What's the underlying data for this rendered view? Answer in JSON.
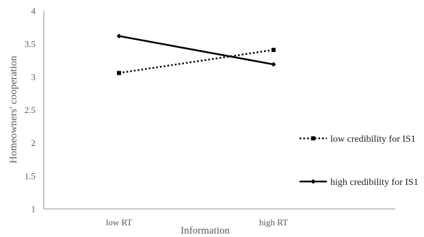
{
  "chart_data": {
    "type": "line",
    "title": "",
    "xlabel": "Information",
    "ylabel": "Homeowners' cooperation",
    "categories": [
      "low RT",
      "high RT"
    ],
    "ylim": [
      1,
      4
    ],
    "yticks": [
      1,
      1.5,
      2,
      2.5,
      3,
      3.5,
      4
    ],
    "ytick_labels": [
      "1",
      "1.5",
      "2",
      "2.5",
      "3",
      "3.5",
      "4"
    ],
    "grid": false,
    "legend_position": "right",
    "series": [
      {
        "name": "low credibility for IS1",
        "values": [
          3.06,
          3.41
        ],
        "color": "#000000",
        "line_style": "dotted",
        "marker": "square"
      },
      {
        "name": "high credibility for IS1",
        "values": [
          3.62,
          3.19
        ],
        "color": "#000000",
        "line_style": "solid",
        "marker": "diamond"
      }
    ]
  }
}
